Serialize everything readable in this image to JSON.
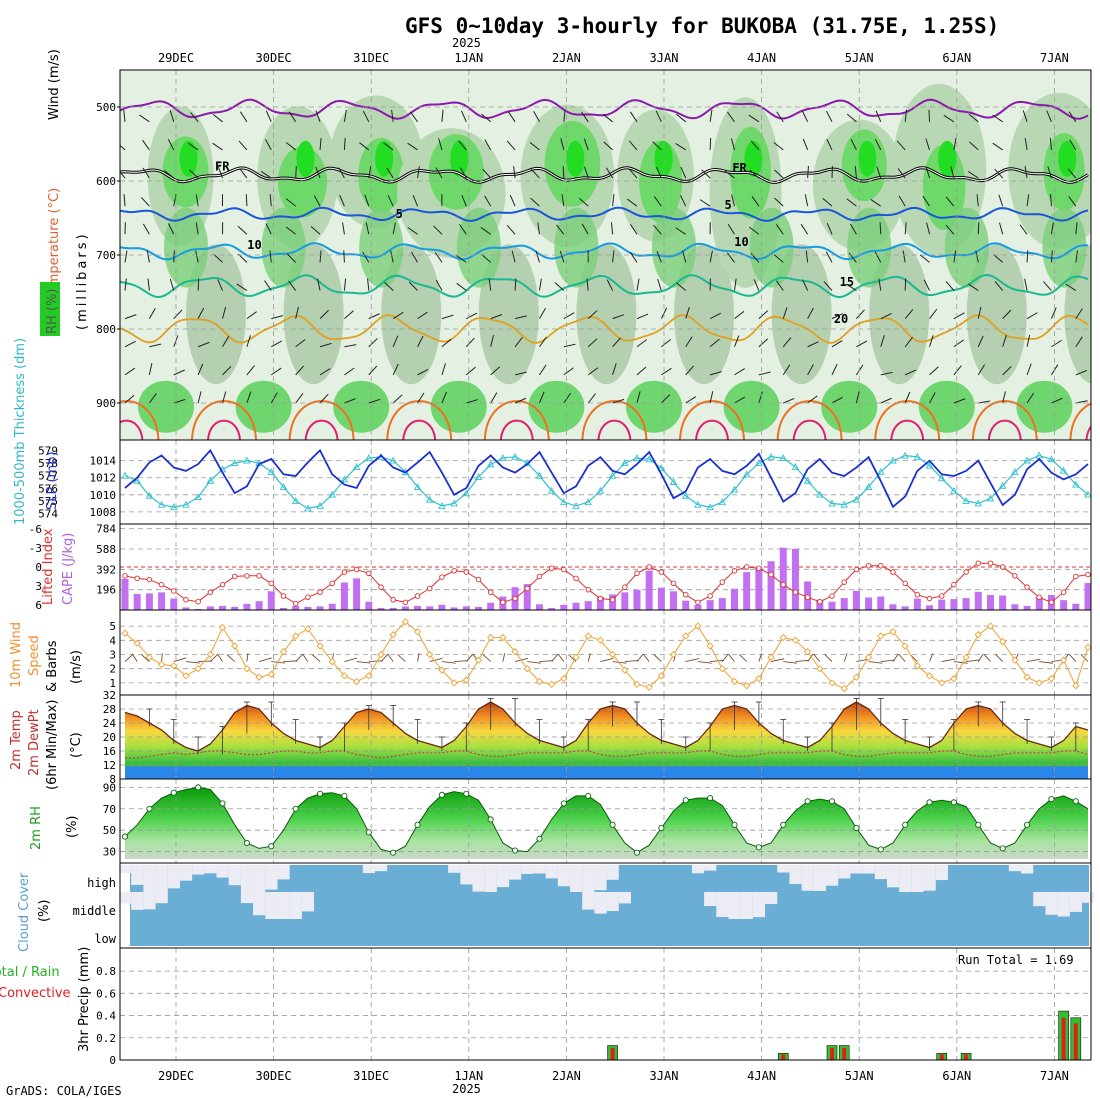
{
  "title": "GFS 0~10day 3-hourly for BUKOBA (31.75E, 1.25S)",
  "year_label": "2025",
  "footer": "GrADS: COLA/IGES",
  "run_total_text": "Run Total = 1.69",
  "colors": {
    "rh_green": "#22cc22",
    "rh_light": "#cfe8cf",
    "wind_purple": "#8a1aaa",
    "isotherm_blue": "#1a56d8",
    "isotherm_cyan": "#1a9ae0",
    "isotherm_teal": "#1ab890",
    "isotherm_orange": "#e0a020",
    "isotherm_red": "#e02070",
    "slp_line": "#1a30d0",
    "thickness_line": "#30c0d0",
    "li_line": "#e03030",
    "cape_bar": "#c070f0",
    "wind10_line": "#f0a030",
    "cloud_blue": "#6aaed6",
    "cloud_white": "#ececf4",
    "precip_green": "#30c030",
    "precip_red": "#e02020"
  },
  "chart_data": [
    {
      "panel": "upper-air",
      "type": "heatmap",
      "ylabel_parts": [
        "Wind (m/s)",
        "Temperature (°C)",
        "RH (%)"
      ],
      "ylabel_sub": "(millibars)",
      "yticks": [
        500,
        600,
        700,
        800,
        900
      ],
      "ylim": [
        950,
        450
      ],
      "x_dates": [
        "29DEC",
        "30DEC",
        "31DEC",
        "1JAN",
        "2JAN",
        "3JAN",
        "4JAN",
        "5JAN",
        "6JAN",
        "7JAN"
      ],
      "isotherm_labels": [
        {
          "text": "FR",
          "x_day": 0.4,
          "p": 586
        },
        {
          "text": "FR",
          "x_day": 5.7,
          "p": 588
        },
        {
          "text": "5",
          "x_day": 2.25,
          "p": 650
        },
        {
          "text": "5",
          "x_day": 5.62,
          "p": 638
        },
        {
          "text": "10",
          "x_day": 0.73,
          "p": 692
        },
        {
          "text": "10",
          "x_day": 5.72,
          "p": 688
        },
        {
          "text": "15",
          "x_day": 6.8,
          "p": 742
        },
        {
          "text": "20",
          "x_day": 6.74,
          "p": 792
        }
      ]
    },
    {
      "panel": "slp-thickness",
      "type": "line",
      "ylabel_left": "1000-500mb Thickness (dm)",
      "ylabel_right": "SLP (mb)",
      "left_ticks": [
        574,
        575,
        576,
        577,
        578,
        579
      ],
      "right_ticks": [
        1008,
        1010,
        1012,
        1014
      ],
      "series": [
        {
          "name": "SLP (mb)",
          "values": [
            1010.8,
            1012.0,
            1013.8,
            1014.6,
            1013.2,
            1012.8,
            1013.6,
            1015.2,
            1012.6,
            1010.2,
            1011.0,
            1013.6,
            1014.2,
            1012.4,
            1012.2,
            1013.8,
            1015.2,
            1012.4,
            1011.2,
            1010.8,
            1013.4,
            1014.6,
            1013.2,
            1012.6,
            1013.8,
            1015.0,
            1012.6,
            1010.0,
            1010.8,
            1013.4,
            1014.6,
            1013.2,
            1012.6,
            1013.6,
            1015.0,
            1012.6,
            1010.2,
            1011.0,
            1013.4,
            1014.4,
            1012.8,
            1012.4,
            1013.6,
            1015.0,
            1012.4,
            1009.6,
            1010.4,
            1013.2,
            1014.2,
            1012.8,
            1012.4,
            1013.4,
            1014.8,
            1012.0,
            1009.2,
            1010.2,
            1013.0,
            1014.2,
            1012.6,
            1012.2,
            1013.2,
            1014.4,
            1011.6,
            1008.6,
            1009.8,
            1012.8,
            1014.0,
            1012.4,
            1012.2,
            1012.8,
            1014.0,
            1011.4,
            1008.8,
            1010.0,
            1013.0,
            1014.2,
            1012.6,
            1011.8,
            1012.4,
            1013.6
          ]
        },
        {
          "name": "Thickness (dm)",
          "values": [
            577.0,
            576.6,
            575.4,
            574.7,
            574.5,
            574.7,
            575.3,
            576.6,
            577.5,
            578.0,
            578.2,
            578.0,
            577.3,
            576.1,
            575.0,
            574.4,
            574.6,
            575.5,
            576.7,
            577.7,
            578.4,
            578.5,
            578.2,
            577.3,
            576.1,
            575.1,
            574.6,
            574.8,
            575.6,
            576.9,
            577.9,
            578.4,
            578.5,
            578.0,
            577.0,
            575.8,
            574.9,
            574.6,
            574.9,
            575.8,
            577.0,
            578.0,
            578.4,
            578.3,
            577.6,
            576.5,
            575.4,
            574.7,
            574.5,
            574.9,
            575.9,
            577.1,
            578.0,
            578.5,
            578.4,
            577.7,
            576.6,
            575.5,
            574.8,
            574.7,
            575.1,
            576.1,
            577.3,
            578.2,
            578.6,
            578.5,
            577.8,
            576.8,
            575.8,
            575.0,
            574.8,
            575.2,
            576.2,
            577.3,
            578.2,
            578.6,
            578.3,
            577.4,
            576.3,
            575.5
          ]
        }
      ]
    },
    {
      "panel": "lifted-index-cape",
      "type": "bar",
      "ylabel_left": "Lifted Index",
      "ylabel_right": "CAPE (J/kg)",
      "li_ticks": [
        6,
        3,
        0,
        -3,
        -6
      ],
      "cape_ticks": [
        196,
        392,
        588,
        784
      ],
      "series": [
        {
          "name": "CAPE (J/kg)",
          "values": [
            300,
            155,
            160,
            170,
            110,
            25,
            10,
            35,
            40,
            30,
            60,
            85,
            180,
            20,
            40,
            30,
            35,
            60,
            265,
            305,
            80,
            20,
            20,
            35,
            40,
            35,
            50,
            25,
            35,
            30,
            70,
            130,
            220,
            250,
            55,
            20,
            50,
            70,
            85,
            125,
            150,
            170,
            195,
            380,
            215,
            180,
            90,
            50,
            95,
            115,
            205,
            365,
            420,
            470,
            600,
            590,
            275,
            100,
            80,
            115,
            185,
            120,
            130,
            55,
            35,
            110,
            45,
            100,
            105,
            115,
            175,
            145,
            140,
            55,
            40,
            125,
            145,
            95,
            60,
            260
          ]
        },
        {
          "name": "Lifted Index",
          "values": [
            1.4,
            1.8,
            2.0,
            2.8,
            3.8,
            5.2,
            5.5,
            4.0,
            2.8,
            1.5,
            1.4,
            1.4,
            2.6,
            4.6,
            5.8,
            4.8,
            4.0,
            2.6,
            0.8,
            0.4,
            1.0,
            3.2,
            5.2,
            5.6,
            4.6,
            3.4,
            1.6,
            0.6,
            0.8,
            2.0,
            4.0,
            5.6,
            5.0,
            3.4,
            1.5,
            0.2,
            0.4,
            1.8,
            3.6,
            5.0,
            5.2,
            3.2,
            1.0,
            0.0,
            0.8,
            2.6,
            4.4,
            5.6,
            4.6,
            2.4,
            0.6,
            0.0,
            0.2,
            1.2,
            2.8,
            4.0,
            4.8,
            5.5,
            4.6,
            2.4,
            0.4,
            -0.2,
            -0.2,
            0.8,
            2.6,
            4.4,
            5.0,
            4.6,
            2.8,
            0.8,
            -0.6,
            -0.6,
            0.0,
            1.4,
            3.2,
            4.8,
            5.6,
            4.0,
            1.5,
            1.2
          ]
        }
      ]
    },
    {
      "panel": "wind10",
      "type": "line",
      "ylabel_parts": [
        "10m Wind",
        "Speed",
        "& Barbs",
        "(m/s)"
      ],
      "yticks": [
        1,
        2,
        3,
        4,
        5
      ],
      "series": [
        {
          "name": "10m Wind Speed (m/s)",
          "values": [
            4.5,
            3.8,
            2.8,
            2.3,
            2.2,
            1.5,
            2.0,
            3.0,
            4.9,
            3.6,
            2.0,
            1.4,
            1.6,
            3.2,
            4.3,
            4.8,
            3.6,
            2.5,
            1.5,
            1.1,
            1.5,
            3.0,
            4.4,
            5.3,
            4.6,
            3.0,
            1.9,
            1.0,
            1.2,
            2.6,
            4.2,
            4.2,
            3.2,
            2.0,
            1.1,
            0.9,
            1.3,
            2.8,
            4.3,
            4.0,
            3.0,
            1.9,
            0.9,
            0.7,
            1.5,
            3.0,
            4.3,
            5.0,
            3.6,
            2.0,
            1.1,
            0.8,
            1.3,
            2.8,
            4.2,
            4.0,
            3.2,
            2.0,
            1.0,
            0.6,
            1.4,
            2.8,
            4.3,
            4.6,
            3.6,
            2.2,
            1.5,
            1.0,
            1.3,
            2.8,
            4.4,
            5.0,
            3.9,
            2.6,
            1.4,
            1.0,
            1.3,
            2.6,
            0.8,
            3.5
          ]
        }
      ]
    },
    {
      "panel": "temp2m",
      "type": "area",
      "ylabel_parts": [
        "2m Temp",
        "2m DewPt",
        "(6hr Min/Max)",
        "(°C)"
      ],
      "yticks": [
        8,
        12,
        16,
        20,
        24,
        28,
        32
      ],
      "series": [
        {
          "name": "2m Temp (°C)",
          "values": [
            27,
            26,
            24,
            22,
            19,
            17,
            16,
            18,
            22,
            27,
            29,
            28,
            24,
            21,
            19,
            18,
            17,
            19,
            23,
            27,
            28,
            27,
            24,
            21,
            19,
            18,
            17,
            19,
            23,
            28,
            30,
            28,
            24,
            21,
            19,
            18,
            17,
            19,
            24,
            28,
            29,
            28,
            24,
            21,
            19,
            18,
            17,
            19,
            23,
            28,
            29,
            28,
            24,
            21,
            19,
            18,
            17,
            19,
            23,
            28,
            30,
            28,
            24,
            21,
            19,
            18,
            17,
            19,
            24,
            28,
            29,
            28,
            24,
            21,
            19,
            18,
            17,
            19,
            23,
            22
          ]
        },
        {
          "name": "2m DewPt (°C)",
          "values": [
            14,
            14,
            14.5,
            15,
            15.5,
            15,
            15.5,
            16,
            16,
            15.5,
            15,
            15,
            15.5,
            16,
            16,
            15.5,
            15.5,
            16,
            16,
            15,
            14.5,
            14,
            14.5,
            15,
            15.5,
            15.5,
            15.5,
            16,
            16,
            15,
            14.5,
            14.5,
            15,
            15.5,
            15.5,
            15.5,
            15.5,
            16,
            16,
            15,
            14.5,
            14.5,
            15,
            15.5,
            15.5,
            15.5,
            15.5,
            16,
            16,
            15,
            14.5,
            14.5,
            15,
            15.5,
            15.5,
            15.5,
            15.5,
            16,
            16,
            15,
            14.5,
            14.5,
            15,
            15.5,
            15.5,
            15.5,
            15.5,
            16,
            16,
            15,
            14.5,
            14.5,
            15,
            15.5,
            15.5,
            15.5,
            15.5,
            16,
            16,
            15
          ]
        }
      ]
    },
    {
      "panel": "rh2m",
      "type": "area",
      "ylabel_parts": [
        "2m RH",
        "(%)"
      ],
      "yticks": [
        30,
        50,
        70,
        90
      ],
      "series": [
        {
          "name": "2m RH (%)",
          "values": [
            44,
            55,
            70,
            80,
            85,
            88,
            90,
            88,
            75,
            55,
            38,
            33,
            35,
            50,
            70,
            80,
            84,
            85,
            82,
            70,
            48,
            32,
            29,
            35,
            55,
            72,
            83,
            86,
            84,
            78,
            60,
            38,
            31,
            30,
            42,
            60,
            75,
            82,
            82,
            74,
            55,
            38,
            29,
            36,
            52,
            68,
            78,
            80,
            80,
            73,
            55,
            38,
            34,
            38,
            55,
            68,
            77,
            79,
            77,
            70,
            52,
            36,
            32,
            38,
            55,
            68,
            76,
            78,
            76,
            72,
            55,
            38,
            33,
            38,
            55,
            70,
            79,
            82,
            77,
            70
          ]
        }
      ]
    },
    {
      "panel": "cloud-cover",
      "type": "heatmap",
      "ylabel_parts": [
        "Cloud Cover",
        "(%)"
      ],
      "level_labels": [
        "high",
        "middle",
        "low"
      ]
    },
    {
      "panel": "precip",
      "type": "bar",
      "ylabel_parts": [
        "Total / Rain",
        "Convective",
        "3hr Precip (mm)"
      ],
      "yticks": [
        0,
        0.2,
        0.4,
        0.6,
        0.8
      ],
      "series": [
        {
          "name": "Total (mm)",
          "values": [
            0,
            0,
            0,
            0,
            0,
            0,
            0,
            0,
            0,
            0,
            0,
            0,
            0,
            0,
            0,
            0,
            0,
            0,
            0,
            0,
            0,
            0,
            0,
            0,
            0,
            0,
            0,
            0,
            0,
            0,
            0,
            0,
            0,
            0,
            0,
            0,
            0,
            0,
            0,
            0,
            0.13,
            0,
            0,
            0,
            0,
            0,
            0,
            0,
            0,
            0,
            0,
            0,
            0,
            0,
            0.06,
            0,
            0,
            0,
            0.13,
            0.13,
            0,
            0,
            0,
            0,
            0,
            0,
            0,
            0.06,
            0,
            0.06,
            0,
            0,
            0,
            0,
            0,
            0,
            0,
            0.44,
            0.38,
            0
          ]
        },
        {
          "name": "Convective (mm)",
          "values": [
            0,
            0,
            0,
            0,
            0,
            0,
            0,
            0,
            0,
            0,
            0,
            0,
            0,
            0,
            0,
            0,
            0,
            0,
            0,
            0,
            0,
            0,
            0,
            0,
            0,
            0,
            0,
            0,
            0,
            0,
            0,
            0,
            0,
            0,
            0,
            0,
            0,
            0,
            0,
            0,
            0.11,
            0,
            0,
            0,
            0,
            0,
            0,
            0,
            0,
            0,
            0,
            0,
            0,
            0,
            0.05,
            0,
            0,
            0,
            0.11,
            0.11,
            0,
            0,
            0,
            0,
            0,
            0,
            0,
            0.05,
            0,
            0.05,
            0,
            0,
            0,
            0,
            0,
            0,
            0,
            0.38,
            0.33,
            0
          ]
        }
      ]
    }
  ]
}
